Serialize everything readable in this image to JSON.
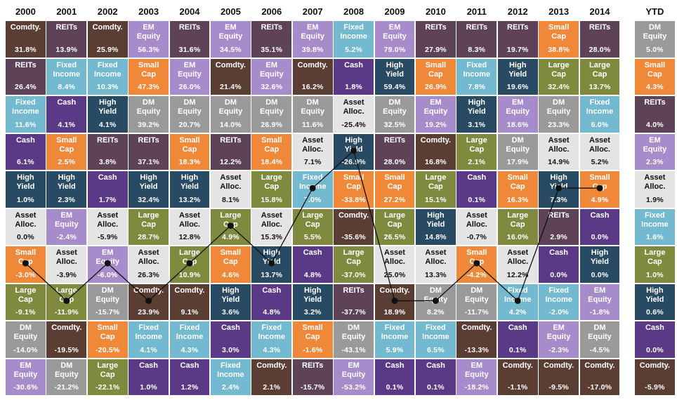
{
  "colors": {
    "Comdty.": "#5a3d33",
    "REITs": "#5e4358",
    "EM\nEquity": "#a78ccc",
    "Fixed\nIncome": "#73b9cf",
    "Small\nCap": "#f0883a",
    "High\nYield": "#284a63",
    "Cash": "#5a3a86",
    "DM\nEquity": "#9a9a9a",
    "Large\nCap": "#7f8a3e",
    "Asset\nAlloc.": "#e4e4e4"
  },
  "chart_data": {
    "type": "table",
    "years": [
      "2000",
      "2001",
      "2002",
      "2003",
      "2004",
      "2005",
      "2006",
      "2007",
      "2008",
      "2009",
      "2010",
      "2011",
      "2012",
      "2013",
      "2014"
    ],
    "ytd_label": "YTD",
    "columns": [
      [
        [
          "Comdty.",
          "31.8%"
        ],
        [
          "REITs",
          "26.4%"
        ],
        [
          "Fixed\nIncome",
          "11.6%"
        ],
        [
          "Cash",
          "6.1%"
        ],
        [
          "High\nYield",
          "1.0%"
        ],
        [
          "Asset\nAlloc.",
          "0.0%"
        ],
        [
          "Small\nCap",
          "-3.0%"
        ],
        [
          "Large\nCap",
          "-9.1%"
        ],
        [
          "DM\nEquity",
          "-14.0%"
        ],
        [
          "EM\nEquity",
          "-30.6%"
        ]
      ],
      [
        [
          "REITs",
          "13.9%"
        ],
        [
          "Fixed\nIncome",
          "8.4%"
        ],
        [
          "Cash",
          "4.1%"
        ],
        [
          "Small\nCap",
          "2.5%"
        ],
        [
          "High\nYield",
          "2.3%"
        ],
        [
          "EM\nEquity",
          "-2.4%"
        ],
        [
          "Asset\nAlloc.",
          "-3.9%"
        ],
        [
          "Large\nCap",
          "-11.9%"
        ],
        [
          "Comdty.",
          "-19.5%"
        ],
        [
          "DM\nEquity",
          "-21.2%"
        ]
      ],
      [
        [
          "Comdty.",
          "25.9%"
        ],
        [
          "Fixed\nIncome",
          "10.3%"
        ],
        [
          "High\nYield",
          "4.1%"
        ],
        [
          "REITs",
          "3.8%"
        ],
        [
          "Cash",
          "1.7%"
        ],
        [
          "Asset\nAlloc.",
          "-5.9%"
        ],
        [
          "EM\nEquity",
          "-6.0%"
        ],
        [
          "DM\nEquity",
          "-15.7%"
        ],
        [
          "Small\nCap",
          "-20.5%"
        ],
        [
          "Large\nCap",
          "-22.1%"
        ]
      ],
      [
        [
          "EM\nEquity",
          "56.3%"
        ],
        [
          "Small\nCap",
          "47.3%"
        ],
        [
          "DM\nEquity",
          "39.2%"
        ],
        [
          "REITs",
          "37.1%"
        ],
        [
          "High\nYield",
          "32.4%"
        ],
        [
          "Large\nCap",
          "28.7%"
        ],
        [
          "Asset\nAlloc.",
          "26.3%"
        ],
        [
          "Comdty.",
          "23.9%"
        ],
        [
          "Fixed\nIncome",
          "4.1%"
        ],
        [
          "Cash",
          "1.0%"
        ]
      ],
      [
        [
          "REITs",
          "31.6%"
        ],
        [
          "EM\nEquity",
          "26.0%"
        ],
        [
          "DM\nEquity",
          "20.7%"
        ],
        [
          "Small\nCap",
          "18.3%"
        ],
        [
          "High\nYield",
          "13.2%"
        ],
        [
          "Asset\nAlloc.",
          "12.8%"
        ],
        [
          "Large\nCap",
          "10.9%"
        ],
        [
          "Comdty.",
          "9.1%"
        ],
        [
          "Fixed\nIncome",
          "4.3%"
        ],
        [
          "Cash",
          "1.2%"
        ]
      ],
      [
        [
          "EM\nEquity",
          "34.5%"
        ],
        [
          "Comdty.",
          "21.4%"
        ],
        [
          "DM\nEquity",
          "14.0%"
        ],
        [
          "REITs",
          "12.2%"
        ],
        [
          "Asset\nAlloc.",
          "8.1%"
        ],
        [
          "Large\nCap",
          "4.9%"
        ],
        [
          "Small\nCap",
          "4.6%"
        ],
        [
          "High\nYield",
          "3.6%"
        ],
        [
          "Cash",
          "3.0%"
        ],
        [
          "Fixed\nIncome",
          "2.4%"
        ]
      ],
      [
        [
          "REITs",
          "35.1%"
        ],
        [
          "EM\nEquity",
          "32.6%"
        ],
        [
          "DM\nEquity",
          "26.9%"
        ],
        [
          "Small\nCap",
          "18.4%"
        ],
        [
          "Large\nCap",
          "15.8%"
        ],
        [
          "Asset\nAlloc.",
          "15.3%"
        ],
        [
          "High\nYield",
          "13.7%"
        ],
        [
          "Cash",
          "4.8%"
        ],
        [
          "Fixed\nIncome",
          "4.3%"
        ],
        [
          "Comdty.",
          "2.1%"
        ]
      ],
      [
        [
          "EM\nEquity",
          "39.8%"
        ],
        [
          "Comdty.",
          "16.2%"
        ],
        [
          "DM\nEquity",
          "11.6%"
        ],
        [
          "Asset\nAlloc.",
          "7.1%"
        ],
        [
          "Fixed\nIncome",
          "7.0%"
        ],
        [
          "Large\nCap",
          "5.5%"
        ],
        [
          "Cash",
          "4.8%"
        ],
        [
          "High\nYield",
          "3.2%"
        ],
        [
          "Small\nCap",
          "-1.6%"
        ],
        [
          "REITs",
          "-15.7%"
        ]
      ],
      [
        [
          "Fixed\nIncome",
          "5.2%"
        ],
        [
          "Cash",
          "1.8%"
        ],
        [
          "Asset\nAlloc.",
          "-25.4%"
        ],
        [
          "High\nYield",
          "-26.9%"
        ],
        [
          "Small\nCap",
          "-33.8%"
        ],
        [
          "Comdty.",
          "-35.6%"
        ],
        [
          "Large\nCap",
          "-37.0%"
        ],
        [
          "REITs",
          "-37.7%"
        ],
        [
          "DM\nEquity",
          "-43.1%"
        ],
        [
          "EM\nEquity",
          "-53.2%"
        ]
      ],
      [
        [
          "EM\nEquity",
          "79.0%"
        ],
        [
          "High\nYield",
          "59.4%"
        ],
        [
          "DM\nEquity",
          "32.5%"
        ],
        [
          "REITs",
          "28.0%"
        ],
        [
          "Small\nCap",
          "27.2%"
        ],
        [
          "Large\nCap",
          "26.5%"
        ],
        [
          "Asset\nAlloc.",
          "25.0%"
        ],
        [
          "Comdty.",
          "18.9%"
        ],
        [
          "Fixed\nIncome",
          "5.9%"
        ],
        [
          "Cash",
          "0.1%"
        ]
      ],
      [
        [
          "REITs",
          "27.9%"
        ],
        [
          "Small\nCap",
          "26.9%"
        ],
        [
          "EM\nEquity",
          "19.2%"
        ],
        [
          "Comdty.",
          "16.8%"
        ],
        [
          "Large\nCap",
          "15.1%"
        ],
        [
          "High\nYield",
          "14.8%"
        ],
        [
          "Asset\nAlloc.",
          "13.3%"
        ],
        [
          "DM\nEquity",
          "8.2%"
        ],
        [
          "Fixed\nIncome",
          "6.5%"
        ],
        [
          "Cash",
          "0.1%"
        ]
      ],
      [
        [
          "REITs",
          "8.3%"
        ],
        [
          "Fixed\nIncome",
          "7.8%"
        ],
        [
          "High\nYield",
          "3.1%"
        ],
        [
          "Large\nCap",
          "2.1%"
        ],
        [
          "Cash",
          "0.1%"
        ],
        [
          "Asset\nAlloc.",
          "-0.7%"
        ],
        [
          "Small\nCap",
          "-4.2%"
        ],
        [
          "DM\nEquity",
          "-11.7%"
        ],
        [
          "Comdty.",
          "-13.3%"
        ],
        [
          "EM\nEquity",
          "-18.2%"
        ]
      ],
      [
        [
          "REITs",
          "19.7%"
        ],
        [
          "High\nYield",
          "19.6%"
        ],
        [
          "EM\nEquity",
          "18.6%"
        ],
        [
          "DM\nEquity",
          "17.9%"
        ],
        [
          "Small\nCap",
          "16.3%"
        ],
        [
          "Large\nCap",
          "16.0%"
        ],
        [
          "Asset\nAlloc.",
          "12.2%"
        ],
        [
          "Fixed\nIncome",
          "4.2%"
        ],
        [
          "Cash",
          "0.1%"
        ],
        [
          "Comdty.",
          "-1.1%"
        ]
      ],
      [
        [
          "Small\nCap",
          "38.8%"
        ],
        [
          "Large\nCap",
          "32.4%"
        ],
        [
          "DM\nEquity",
          "23.3%"
        ],
        [
          "Asset\nAlloc.",
          "14.9%"
        ],
        [
          "High\nYield",
          "7.3%"
        ],
        [
          "REITs",
          "2.9%"
        ],
        [
          "Cash",
          "0.0%"
        ],
        [
          "Fixed\nIncome",
          "-2.0%"
        ],
        [
          "EM\nEquity",
          "-2.3%"
        ],
        [
          "Comdty.",
          "-9.5%"
        ]
      ],
      [
        [
          "REITs",
          "28.0%"
        ],
        [
          "Large\nCap",
          "13.7%"
        ],
        [
          "Fixed\nIncome",
          "6.0%"
        ],
        [
          "Asset\nAlloc.",
          "5.2%"
        ],
        [
          "Small\nCap",
          "4.9%"
        ],
        [
          "Cash",
          "0.0%"
        ],
        [
          "High\nYield",
          "0.0%"
        ],
        [
          "EM\nEquity",
          "-1.8%"
        ],
        [
          "DM\nEquity",
          "-4.5%"
        ],
        [
          "Comdty.",
          "-17.0%"
        ]
      ]
    ],
    "ytd": [
      [
        "DM\nEquity",
        "5.0%"
      ],
      [
        "Small\nCap",
        "4.3%"
      ],
      [
        "REITs",
        "4.0%"
      ],
      [
        "EM\nEquity",
        "2.3%"
      ],
      [
        "Asset\nAlloc.",
        "1.9%"
      ],
      [
        "Fixed\nIncome",
        "1.6%"
      ],
      [
        "Large\nCap",
        "1.0%"
      ],
      [
        "High\nYield",
        "0.6%"
      ],
      [
        "Cash",
        "0.0%"
      ],
      [
        "Comdty.",
        "-5.9%"
      ]
    ],
    "asset_alloc_rank": [
      6,
      7,
      6,
      7,
      6,
      5,
      6,
      4,
      3,
      7,
      7,
      6,
      7,
      4,
      4
    ]
  }
}
